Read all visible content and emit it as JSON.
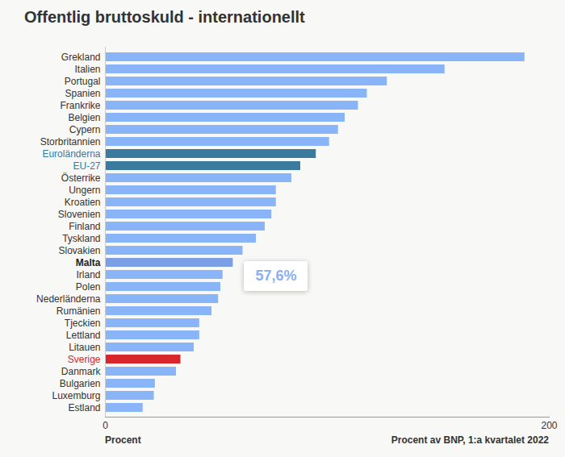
{
  "chart_data": {
    "type": "bar",
    "orientation": "horizontal",
    "title": "Offentlig bruttoskuld - internationellt",
    "x_label": "Procent",
    "x_label_right": "Procent av BNP, 1:a kvartalet 2022",
    "categories": [
      "Grekland",
      "Italien",
      "Portugal",
      "Spanien",
      "Frankrike",
      "Belgien",
      "Cypern",
      "Storbritannien",
      "Euroländerna",
      "EU-27",
      "Österrike",
      "Ungern",
      "Kroatien",
      "Slovenien",
      "Finland",
      "Tyskland",
      "Slovakien",
      "Malta",
      "Irland",
      "Polen",
      "Nederländerna",
      "Rumänien",
      "Tjeckien",
      "Lettland",
      "Litauen",
      "Sverige",
      "Danmark",
      "Bulgarien",
      "Luxemburg",
      "Estland"
    ],
    "values": [
      189,
      153,
      127,
      118,
      114,
      108,
      105,
      101,
      95,
      88,
      84,
      77,
      77,
      75,
      72,
      68,
      62,
      57.6,
      53,
      52,
      51,
      48,
      42.5,
      42.5,
      40,
      34,
      32,
      22.5,
      22,
      17
    ],
    "colors": [
      "#8ab4f8",
      "#8ab4f8",
      "#8ab4f8",
      "#8ab4f8",
      "#8ab4f8",
      "#8ab4f8",
      "#8ab4f8",
      "#8ab4f8",
      "#3a7a9c",
      "#3a7a9c",
      "#8ab4f8",
      "#8ab4f8",
      "#8ab4f8",
      "#8ab4f8",
      "#8ab4f8",
      "#8ab4f8",
      "#8ab4f8",
      "#7b9fe4",
      "#8ab4f8",
      "#8ab4f8",
      "#8ab4f8",
      "#8ab4f8",
      "#8ab4f8",
      "#8ab4f8",
      "#8ab4f8",
      "#d7262c",
      "#8ab4f8",
      "#8ab4f8",
      "#8ab4f8",
      "#8ab4f8"
    ],
    "xlim": [
      0,
      200
    ],
    "xticks": [
      0,
      200
    ],
    "grid": false,
    "annotations": [
      {
        "category": "Malta",
        "text": "57,6%"
      }
    ]
  }
}
